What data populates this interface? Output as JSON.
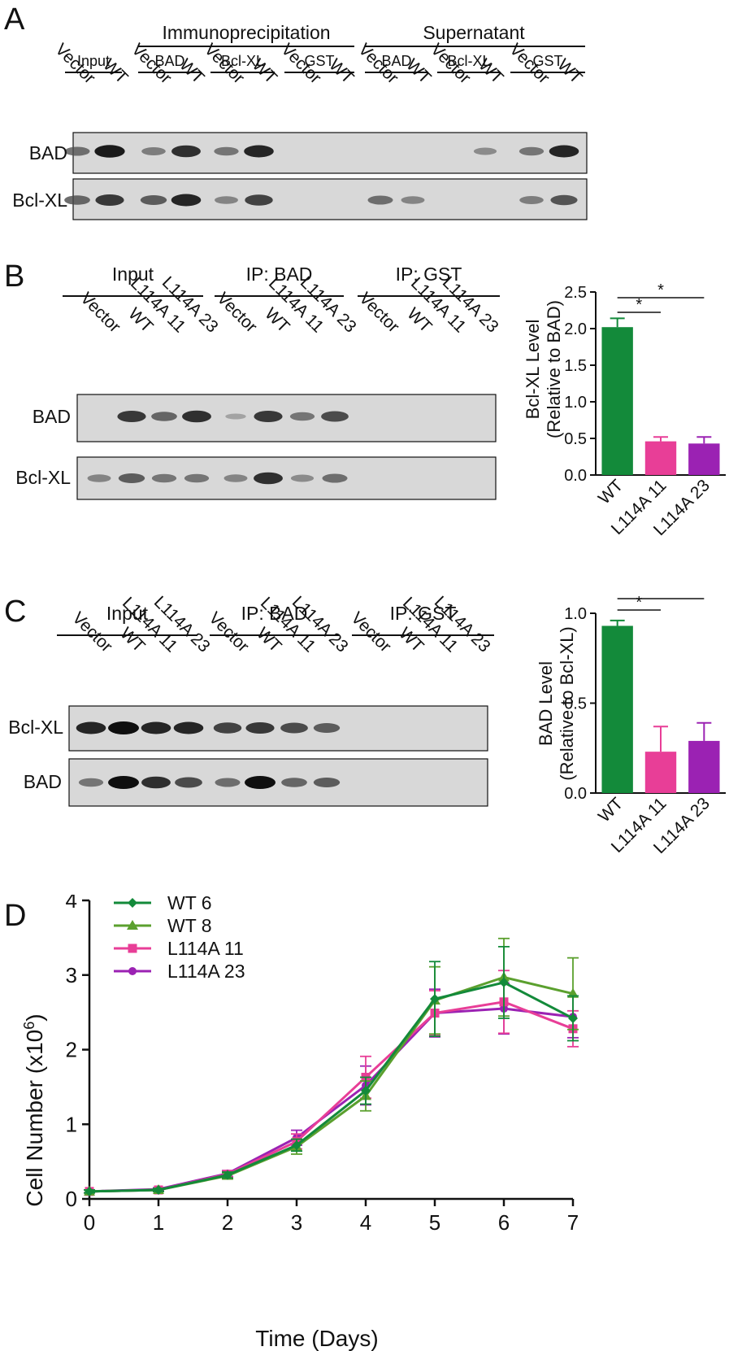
{
  "panelA": {
    "letter": "A",
    "group_immuno": "Immunoprecipitation",
    "group_super": "Supernatant",
    "subgroups": [
      "Input",
      "BAD",
      "Bcl-XL",
      "GST",
      "BAD",
      "Bcl-XL",
      "GST"
    ],
    "lanes": [
      "Vector",
      "WT",
      "Vector",
      "WT",
      "Vector",
      "WT",
      "Vector",
      "WT",
      "Vector",
      "WT",
      "Vector",
      "WT",
      "Vector",
      "WT"
    ],
    "rows": [
      "BAD",
      "Bcl-XL"
    ],
    "bands": [
      [
        0.5,
        0.95,
        0.4,
        0.85,
        0.45,
        0.9,
        0.0,
        0.0,
        0.0,
        0.0,
        0.0,
        0.3,
        0.45,
        0.9
      ],
      [
        0.55,
        0.8,
        0.6,
        0.9,
        0.35,
        0.75,
        0.0,
        0.0,
        0.5,
        0.35,
        0.0,
        0.0,
        0.4,
        0.65
      ]
    ]
  },
  "panelB": {
    "letter": "B",
    "groups": [
      "Input",
      "IP: BAD",
      "IP: GST"
    ],
    "lanes": [
      "Vector",
      "WT",
      "L114A 11",
      "L114A 23",
      "Vector",
      "WT",
      "L114A 11",
      "L114A 23",
      "Vector",
      "WT",
      "L114A 11",
      "L114A 23"
    ],
    "rows": [
      "BAD",
      "Bcl-XL"
    ],
    "bands": [
      [
        0.0,
        0.8,
        0.55,
        0.85,
        0.1,
        0.8,
        0.45,
        0.7,
        0.0,
        0.0,
        0.0,
        0.0
      ],
      [
        0.35,
        0.6,
        0.45,
        0.45,
        0.35,
        0.85,
        0.3,
        0.5,
        0.0,
        0.0,
        0.0,
        0.0
      ]
    ]
  },
  "panelC": {
    "letter": "C",
    "groups": [
      "Input",
      "IP: BAD",
      "IP: GST"
    ],
    "lanes": [
      "Vector",
      "WT",
      "L114A 11",
      "L114A 23",
      "Vector",
      "WT",
      "L114A 11",
      "L114A 23",
      "Vector",
      "WT",
      "L114A 11",
      "L114A 23"
    ],
    "rows": [
      "Bcl-XL",
      "BAD"
    ],
    "bands": [
      [
        0.9,
        1.0,
        0.9,
        0.9,
        0.75,
        0.8,
        0.7,
        0.6,
        0.0,
        0.0,
        0.0,
        0.0
      ],
      [
        0.45,
        1.0,
        0.85,
        0.7,
        0.5,
        1.0,
        0.55,
        0.6,
        0.0,
        0.0,
        0.0,
        0.0
      ]
    ]
  },
  "colors": {
    "green": "#138a3a",
    "pink": "#e83e97",
    "purple": "#9b22b3",
    "olive": "#5ba02e"
  },
  "chart_data": [
    {
      "type": "bar",
      "panel": "B",
      "categories": [
        "WT",
        "L114A 11",
        "L114A 23"
      ],
      "values": [
        2.02,
        0.46,
        0.43
      ],
      "errors": [
        0.12,
        0.06,
        0.09
      ],
      "ylabel": "Bcl-XL Level",
      "ylabel2": "(Relative to BAD)",
      "ylim": [
        0,
        2.5
      ],
      "yticks": [
        "0.0",
        "0.5",
        "1.0",
        "1.5",
        "2.0",
        "2.5"
      ],
      "significance": [
        "*",
        "*"
      ]
    },
    {
      "type": "bar",
      "panel": "C",
      "categories": [
        "WT",
        "L114A 11",
        "L114A 23"
      ],
      "values": [
        0.93,
        0.23,
        0.29
      ],
      "errors": [
        0.03,
        0.14,
        0.1
      ],
      "ylabel": "BAD Level",
      "ylabel2": "(Relative to Bcl-XL)",
      "ylim": [
        0,
        1.0
      ],
      "yticks": [
        "0.0",
        "0.5",
        "1.0"
      ],
      "significance": [
        "*",
        "*"
      ]
    },
    {
      "type": "line",
      "panel": "D",
      "letter": "D",
      "x": [
        0,
        1,
        2,
        3,
        4,
        5,
        6,
        7
      ],
      "xlabel": "Time (Days)",
      "ylabel": "Cell Number (x10",
      "ylabel_sup": "6",
      "ylabel_end": ")",
      "ylim": [
        0,
        4
      ],
      "xlim": [
        0,
        7
      ],
      "yticks": [
        "0",
        "1",
        "2",
        "3",
        "4"
      ],
      "xticks": [
        "0",
        "1",
        "2",
        "3",
        "4",
        "5",
        "6",
        "7"
      ],
      "series": [
        {
          "name": "WT 6",
          "marker": "diamond",
          "values": [
            0.1,
            0.12,
            0.32,
            0.72,
            1.45,
            2.68,
            2.9,
            2.42
          ],
          "errors": [
            0.02,
            0.02,
            0.04,
            0.08,
            0.18,
            0.5,
            0.48,
            0.3
          ]
        },
        {
          "name": "WT 8",
          "marker": "triangle",
          "values": [
            0.1,
            0.12,
            0.31,
            0.7,
            1.38,
            2.66,
            2.97,
            2.75
          ],
          "errors": [
            0.02,
            0.02,
            0.04,
            0.1,
            0.2,
            0.45,
            0.52,
            0.48
          ]
        },
        {
          "name": "L114A 11",
          "marker": "square",
          "values": [
            0.1,
            0.12,
            0.33,
            0.77,
            1.63,
            2.49,
            2.64,
            2.28
          ],
          "errors": [
            0.02,
            0.02,
            0.04,
            0.1,
            0.28,
            0.3,
            0.42,
            0.24
          ]
        },
        {
          "name": "L114A 23",
          "marker": "circle",
          "values": [
            0.1,
            0.13,
            0.34,
            0.82,
            1.52,
            2.49,
            2.55,
            2.44
          ],
          "errors": [
            0.02,
            0.02,
            0.04,
            0.1,
            0.26,
            0.32,
            0.34,
            0.28
          ]
        }
      ]
    }
  ]
}
